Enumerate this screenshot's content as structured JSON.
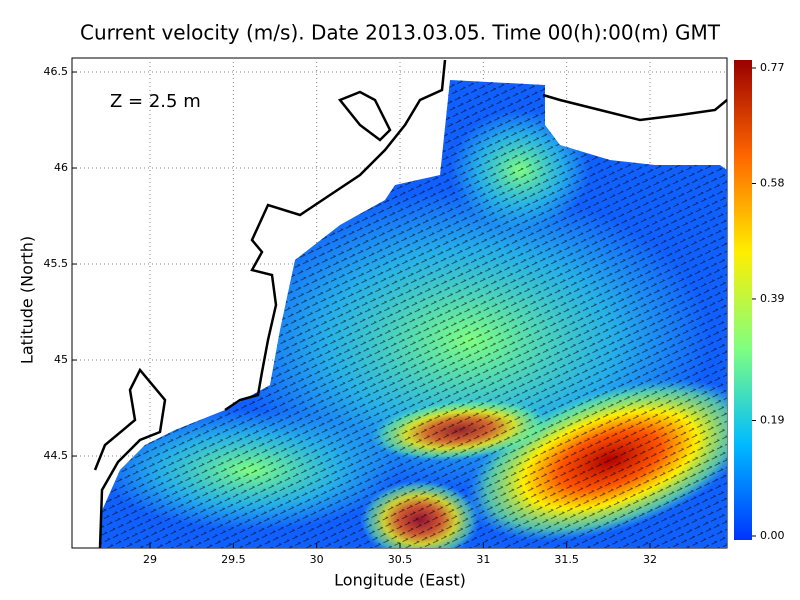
{
  "chart_data": {
    "type": "vector-field",
    "title": "Current velocity (m/s). Date 2013.03.05. Time 00(h):00(m) GMT",
    "annotation": "Z = 2.5 m",
    "x_label": "Longitude (East)",
    "y_label": "Latitude (North)",
    "xlim": [
      28.532,
      32.462
    ],
    "ylim": [
      44.021,
      46.573
    ],
    "xticks": [
      29,
      29.5,
      30,
      30.5,
      31,
      31.5,
      32
    ],
    "yticks": [
      44.5,
      45,
      45.5,
      46,
      46.5
    ],
    "grid": true,
    "colorbar": {
      "lim": [
        0,
        0.77
      ],
      "ticks": [
        {
          "value": 0,
          "label": "0.00"
        },
        0.19,
        0.39,
        0.58,
        0.77
      ],
      "colors": [
        "#0033ff",
        "#00bbff",
        "#80ff80",
        "#ffee00",
        "#ff6600",
        "#990000"
      ]
    }
  }
}
